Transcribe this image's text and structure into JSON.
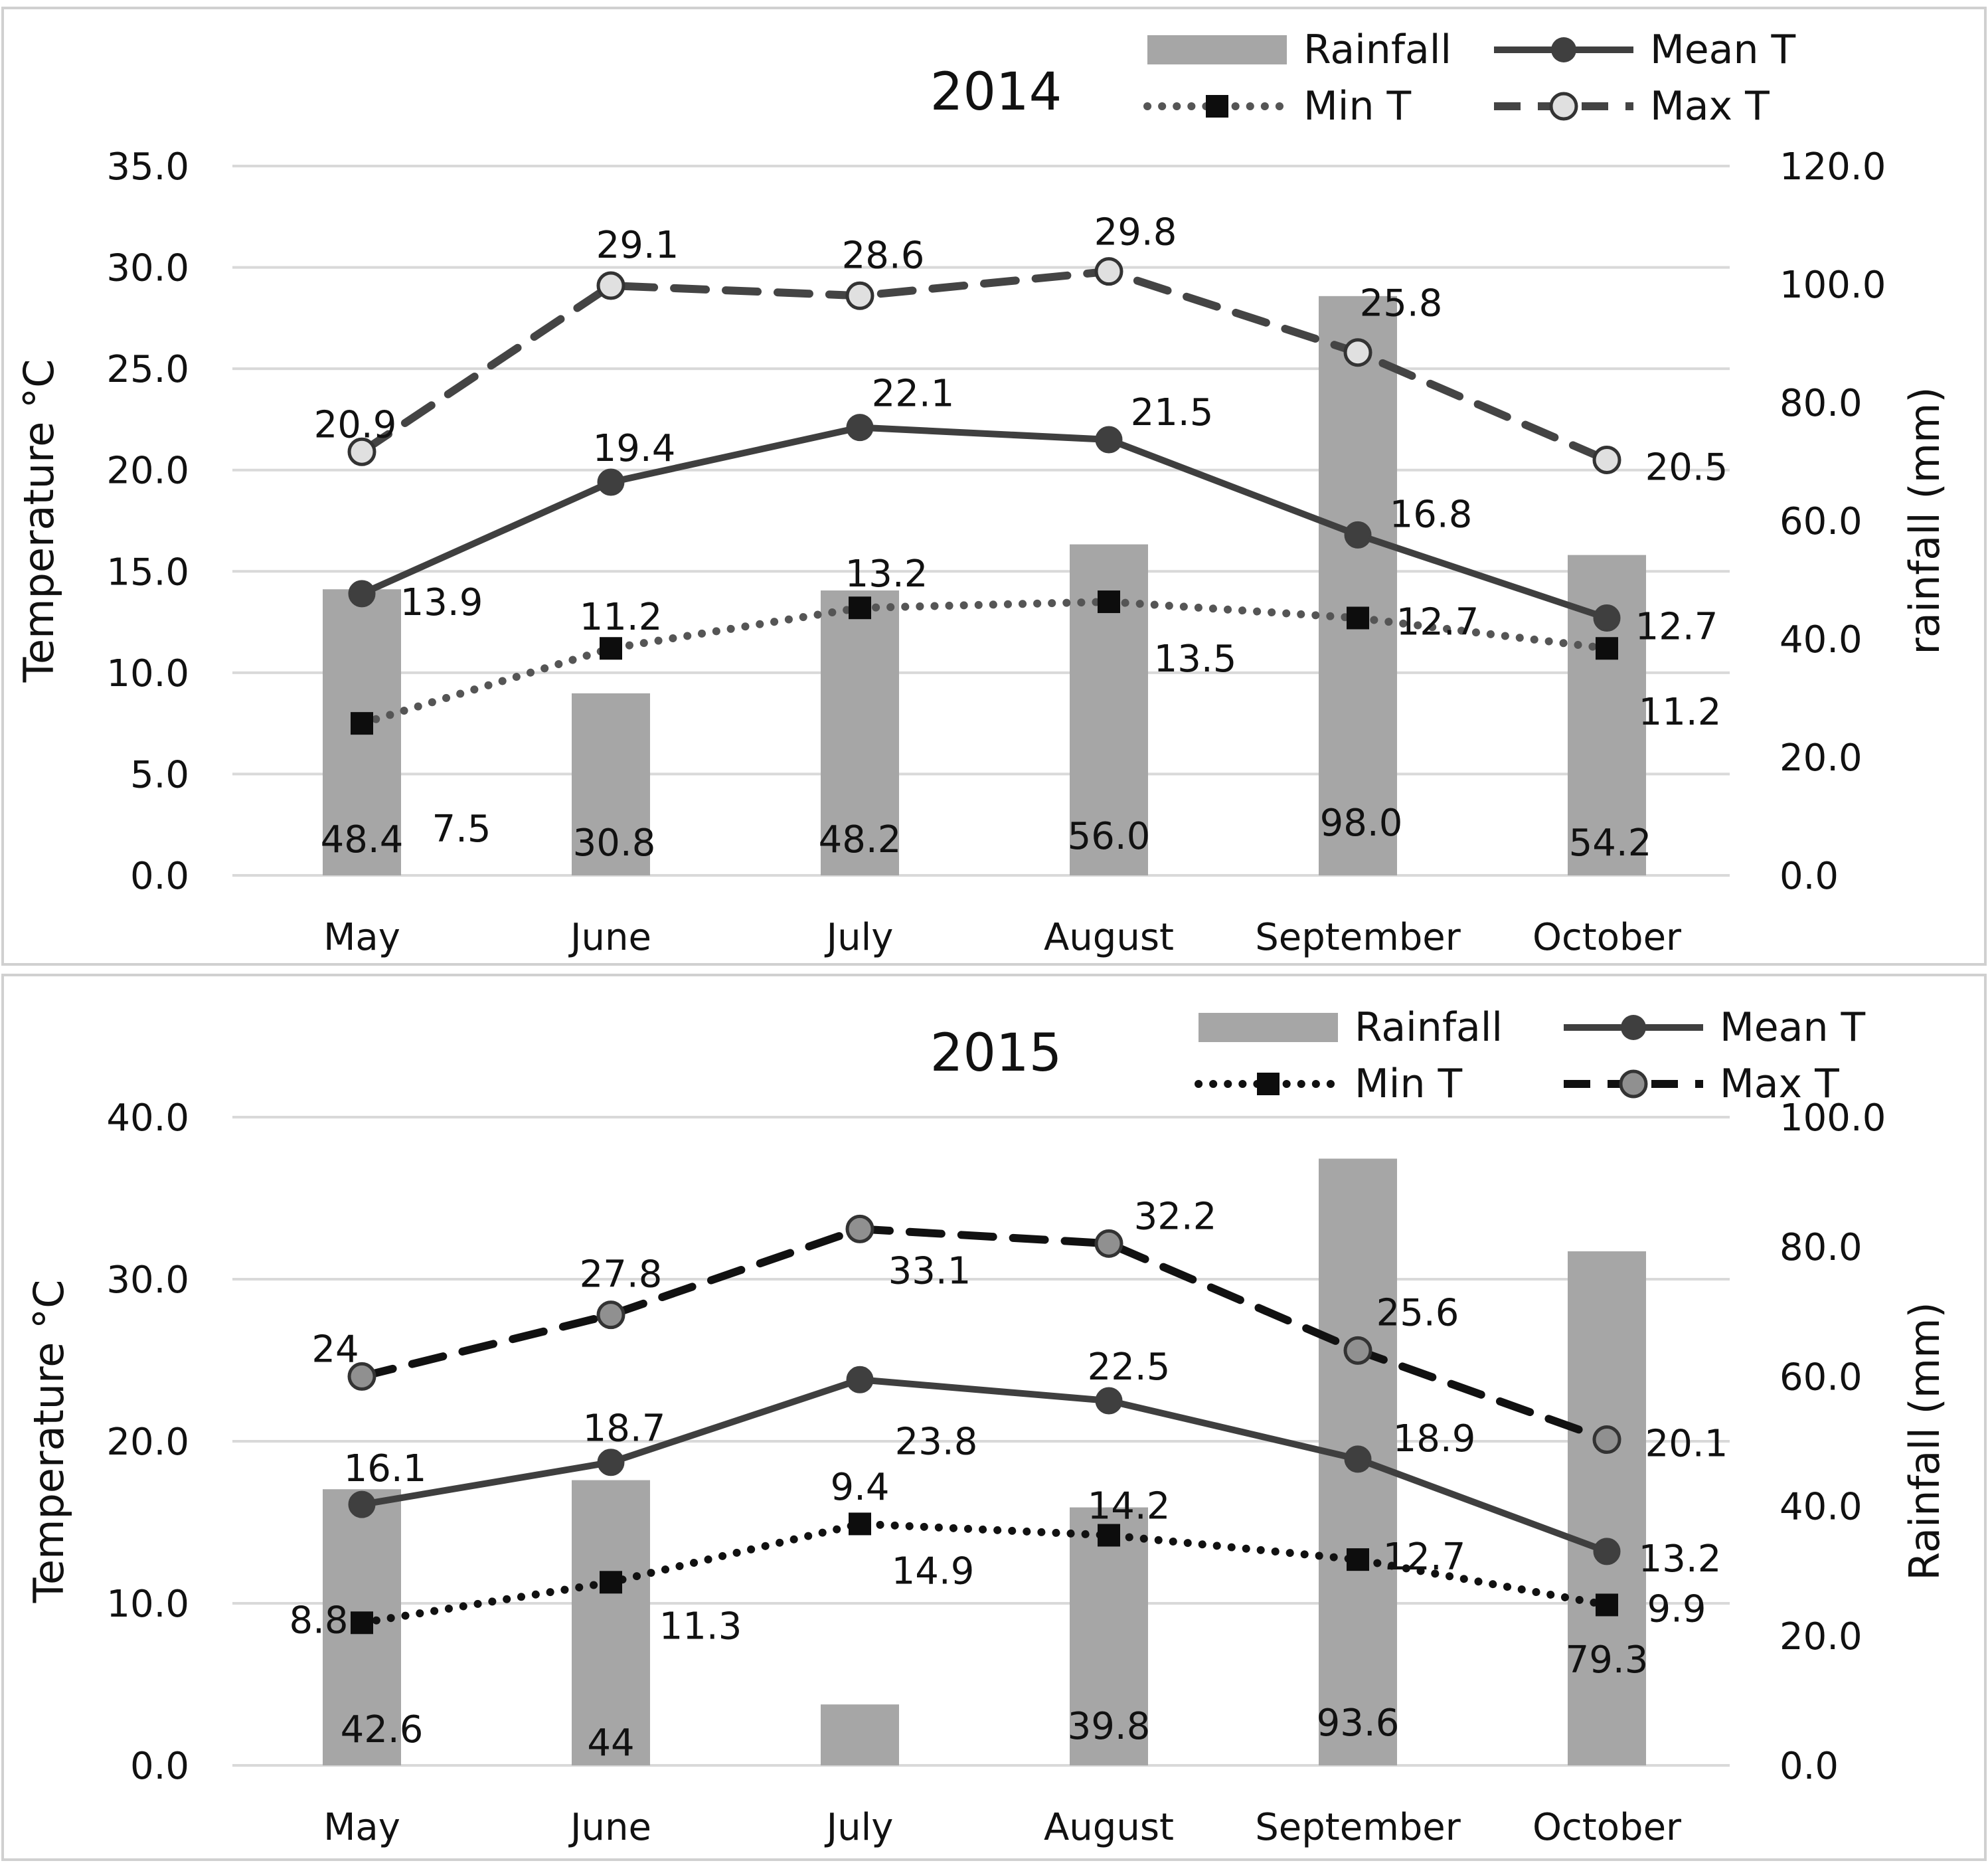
{
  "colors": {
    "bar": "#a6a6a6",
    "line": "#3f3f3f",
    "grid": "#d9d9d9",
    "marker_fill_2014": "#e0e0e0",
    "marker_fill_2015": "#909090",
    "panel_border": "#d0d0d0"
  },
  "chart_data": [
    {
      "type": "bar",
      "title": "2014",
      "categories": [
        "May",
        "June",
        "July",
        "August",
        "September",
        "October"
      ],
      "ylabel": "Temperature °C",
      "y2label": "rainfall (mm)",
      "ylim": [
        0,
        35
      ],
      "y_ticks": [
        "0.0",
        "5.0",
        "10.0",
        "15.0",
        "20.0",
        "25.0",
        "30.0",
        "35.0"
      ],
      "y2lim": [
        0,
        120
      ],
      "y2_ticks": [
        "0.0",
        "20.0",
        "40.0",
        "60.0",
        "80.0",
        "100.0",
        "120.0"
      ],
      "grid": true,
      "legend_position": "top-right",
      "series": [
        {
          "name": "Rainfall",
          "kind": "bar",
          "axis": "secondary",
          "values": [
            48.4,
            30.8,
            48.2,
            56.0,
            98.0,
            54.2
          ],
          "labels": [
            "48.4",
            "30.8",
            "48.2",
            "56.0",
            "98.0",
            "54.2"
          ]
        },
        {
          "name": "Mean T",
          "kind": "line",
          "style": "solid",
          "marker": "circle",
          "axis": "primary",
          "values": [
            13.9,
            19.4,
            22.1,
            21.5,
            16.8,
            12.7
          ],
          "labels": [
            "13.9",
            "19.4",
            "22.1",
            "21.5",
            "16.8",
            "12.7"
          ]
        },
        {
          "name": "Min T",
          "kind": "line",
          "style": "dotted",
          "marker": "square",
          "axis": "primary",
          "values": [
            7.5,
            11.2,
            13.2,
            13.5,
            12.7,
            11.2
          ],
          "labels": [
            "7.5",
            "11.2",
            "13.2",
            "13.5",
            "12.7",
            "11.2"
          ]
        },
        {
          "name": "Max T",
          "kind": "line",
          "style": "dashed",
          "marker": "circle-open",
          "axis": "primary",
          "values": [
            20.9,
            29.1,
            28.6,
            29.8,
            25.8,
            20.5
          ],
          "labels": [
            "20.9",
            "29.1",
            "28.6",
            "29.8",
            "25.8",
            "20.5"
          ]
        }
      ]
    },
    {
      "type": "bar",
      "title": "2015",
      "categories": [
        "May",
        "June",
        "July",
        "August",
        "September",
        "October"
      ],
      "ylabel": "Temperature °C",
      "y2label": "Rainfall (mm)",
      "ylim": [
        0,
        40
      ],
      "y_ticks": [
        "0.0",
        "10.0",
        "20.0",
        "30.0",
        "40.0"
      ],
      "y2lim": [
        0,
        100
      ],
      "y2_ticks": [
        "0.0",
        "20.0",
        "40.0",
        "60.0",
        "80.0",
        "100.0"
      ],
      "grid": true,
      "legend_position": "top-right",
      "series": [
        {
          "name": "Rainfall",
          "kind": "bar",
          "axis": "secondary",
          "values": [
            42.6,
            44,
            9.4,
            39.8,
            93.6,
            79.3
          ],
          "labels": [
            "42.6",
            "44",
            "9.4",
            "39.8",
            "93.6",
            "79.3"
          ]
        },
        {
          "name": "Mean T",
          "kind": "line",
          "style": "solid",
          "marker": "circle",
          "axis": "primary",
          "values": [
            16.1,
            18.7,
            23.8,
            22.5,
            18.9,
            13.2
          ],
          "labels": [
            "16.1",
            "18.7",
            "23.8",
            "22.5",
            "18.9",
            "13.2"
          ]
        },
        {
          "name": "Min T",
          "kind": "line",
          "style": "dotted",
          "marker": "square",
          "axis": "primary",
          "values": [
            8.8,
            11.3,
            14.9,
            14.2,
            12.7,
            9.9
          ],
          "labels": [
            "8.8",
            "11.3",
            "14.9",
            "14.2",
            "12.7",
            "9.9"
          ]
        },
        {
          "name": "Max T",
          "kind": "line",
          "style": "dashed",
          "marker": "circle-open",
          "axis": "primary",
          "values": [
            24,
            27.8,
            33.1,
            32.2,
            25.6,
            20.1
          ],
          "labels": [
            "24",
            "27.8",
            "33.1",
            "32.2",
            "25.6",
            "20.1"
          ]
        }
      ]
    }
  ]
}
